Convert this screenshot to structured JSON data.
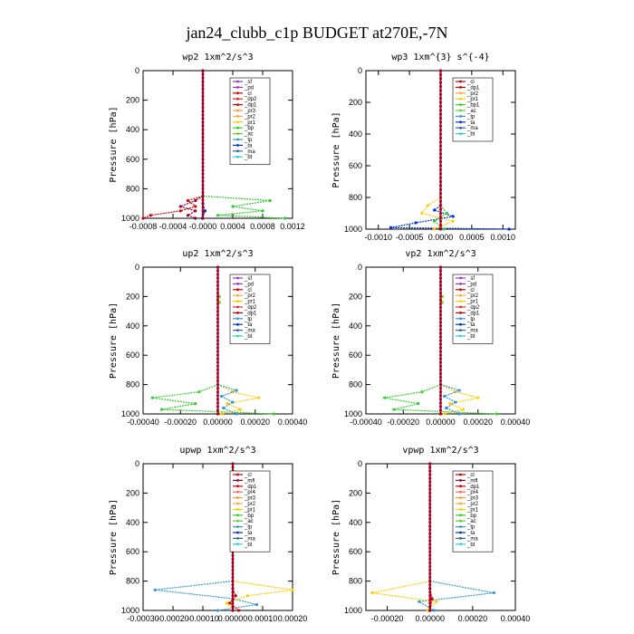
{
  "figure_title": "jan24_clubb_c1p  BUDGET at270E,-7N",
  "chart_data": [
    {
      "type": "line",
      "title": "wp2   1xm^2/s^3",
      "ylabel": "Pressure [hPa]",
      "ylim": [
        1000,
        0
      ],
      "yticks": [
        0,
        200,
        400,
        600,
        800,
        1000
      ],
      "xlim": [
        -0.0008,
        0.0012
      ],
      "xticks": [
        "-0.0008",
        "-0.0004",
        "-0.0000",
        "0.0004",
        "0.0008",
        "0.0012"
      ],
      "xtick_values": [
        -0.0008,
        -0.0004,
        0.0,
        0.0004,
        0.0008,
        0.0012
      ],
      "legend": [
        "_sf",
        "_pd",
        "_cl",
        "_dp2",
        "_dp1",
        "_pr3",
        "_pr2",
        "_pr1",
        "_bp",
        "_ac",
        "_tp",
        "_ta",
        "_ma",
        "_bt"
      ],
      "series": [
        {
          "name": "_bp",
          "color": "#33cc33",
          "y": [
            850,
            880,
            920,
            950,
            980,
            1000
          ],
          "x": [
            0.0,
            0.0009,
            0.0004,
            0.0008,
            0.0002,
            0.0011
          ]
        },
        {
          "name": "_dp1",
          "color": "#cc0000",
          "y": [
            850,
            880,
            920,
            950,
            980,
            1000
          ],
          "x": [
            0.0,
            -0.0002,
            -0.0001,
            -0.0003,
            -0.0007,
            -0.0008
          ]
        },
        {
          "name": "_dp2",
          "color": "#990033",
          "y": [
            850,
            880,
            920,
            950,
            980,
            1000
          ],
          "x": [
            0.0,
            -0.0001,
            -0.0003,
            -0.0001,
            -0.0002,
            -0.0001
          ]
        },
        {
          "name": "_ta",
          "color": "#0033cc",
          "y": [
            850,
            900,
            950,
            1000
          ],
          "x": [
            0.0,
            0.0,
            3e-05,
            -1e-05
          ]
        },
        {
          "name": "_pd",
          "color": "#9933cc",
          "y": [
            0,
            1000
          ],
          "x": [
            0.0,
            0.0
          ]
        }
      ]
    },
    {
      "type": "line",
      "title": "wp3   1xm^{3} s^{-4}",
      "ylabel": "Pressure [hPa]",
      "ylim": [
        1000,
        0
      ],
      "yticks": [
        0,
        200,
        400,
        600,
        800,
        1000
      ],
      "xlim": [
        -0.0012,
        0.0012
      ],
      "xticks": [
        "-0.0010",
        "-0.0005",
        "0.0000",
        "0.0005",
        "0.0010"
      ],
      "xtick_values": [
        -0.001,
        -0.0005,
        0.0,
        0.0005,
        0.001
      ],
      "legend": [
        "_cl",
        "_dp1",
        "_pr2",
        "_pr1",
        "_bp1",
        "_ac",
        "_tp",
        "_ta",
        "_ma",
        "_bt"
      ],
      "series": [
        {
          "name": "_ta",
          "color": "#0033cc",
          "y": [
            850,
            880,
            920,
            960,
            990,
            1000
          ],
          "x": [
            0.0,
            -0.0001,
            0.0002,
            -0.0004,
            -0.0008,
            0.0011
          ]
        },
        {
          "name": "_pr1",
          "color": "#ffcc00",
          "y": [
            800,
            850,
            900,
            950,
            1000
          ],
          "x": [
            0.0,
            -0.0002,
            -0.0003,
            0.0002,
            -0.0001
          ]
        },
        {
          "name": "_ac",
          "color": "#33cc33",
          "y": [
            850,
            900,
            950,
            1000
          ],
          "x": [
            0.0,
            0.0001,
            -0.0001,
            5e-05
          ]
        },
        {
          "name": "_dp1",
          "color": "#cc0000",
          "y": [
            0,
            1000
          ],
          "x": [
            0.0,
            0.0
          ]
        }
      ]
    },
    {
      "type": "line",
      "title": "up2   1xm^2/s^3",
      "ylabel": "Pressure [hPa]",
      "ylim": [
        1000,
        0
      ],
      "yticks": [
        0,
        200,
        400,
        600,
        800,
        1000
      ],
      "xlim": [
        -0.0004,
        0.0004
      ],
      "xticks": [
        "-0.00040",
        "-0.00020",
        "0.00000",
        "0.00020",
        "0.00040"
      ],
      "xtick_values": [
        -0.0004,
        -0.0002,
        0.0,
        0.0002,
        0.0004
      ],
      "legend": [
        "_sf",
        "_pd",
        "_cl",
        "_pr2",
        "_pr1",
        "_dp2",
        "_dp1",
        "_tp",
        "_ta",
        "_ma",
        "_bt"
      ],
      "series": [
        {
          "name": "_dp1",
          "color": "#33cc33",
          "y": [
            800,
            850,
            890,
            930,
            970,
            1000
          ],
          "x": [
            0.0,
            -0.0001,
            -0.00035,
            -0.00012,
            -0.0003,
            0.0003
          ]
        },
        {
          "name": "_pr1",
          "color": "#ffcc00",
          "y": [
            800,
            850,
            890,
            930,
            970,
            1000
          ],
          "x": [
            0.0,
            8e-05,
            0.00022,
            5e-05,
            0.00012,
            2e-05
          ]
        },
        {
          "name": "_tp",
          "color": "#3399cc",
          "y": [
            800,
            840,
            880,
            920,
            960,
            1000
          ],
          "x": [
            0.0,
            0.0001,
            2e-05,
            8e-05,
            3e-05,
            0.0001
          ]
        },
        {
          "name": "_dp2",
          "color": "#99cc33",
          "y": [
            180,
            200,
            220,
            240
          ],
          "x": [
            0.0,
            1e-05,
            0.0,
            1e-05
          ]
        },
        {
          "name": "_cl",
          "color": "#cc0000",
          "y": [
            0,
            1000
          ],
          "x": [
            0.0,
            0.0
          ]
        }
      ]
    },
    {
      "type": "line",
      "title": "vp2   1xm^2/s^3",
      "ylabel": "Pressure [hPa]",
      "ylim": [
        1000,
        0
      ],
      "yticks": [
        0,
        200,
        400,
        600,
        800,
        1000
      ],
      "xlim": [
        -0.0004,
        0.0004
      ],
      "xticks": [
        "-0.00040",
        "-0.00020",
        "0.00000",
        "0.00020",
        "0.00040"
      ],
      "xtick_values": [
        -0.0004,
        -0.0002,
        0.0,
        0.0002,
        0.0004
      ],
      "legend": [
        "_sf",
        "_pd",
        "_cl",
        "_pr2",
        "_pr1",
        "_dp2",
        "_dp1",
        "_tp",
        "_ta",
        "_ma",
        "_bt"
      ],
      "series": [
        {
          "name": "_dp1",
          "color": "#33cc33",
          "y": [
            800,
            850,
            890,
            930,
            970,
            1000
          ],
          "x": [
            0.0,
            -0.0001,
            -0.0003,
            -0.00012,
            -0.00025,
            0.0003
          ]
        },
        {
          "name": "_pr1",
          "color": "#ffcc00",
          "y": [
            800,
            850,
            890,
            930,
            970,
            1000
          ],
          "x": [
            0.0,
            8e-05,
            0.0002,
            5e-05,
            0.00012,
            2e-05
          ]
        },
        {
          "name": "_tp",
          "color": "#3399cc",
          "y": [
            800,
            840,
            880,
            920,
            960,
            1000
          ],
          "x": [
            0.0,
            0.0001,
            2e-05,
            8e-05,
            3e-05,
            0.0001
          ]
        },
        {
          "name": "_dp2",
          "color": "#99cc33",
          "y": [
            180,
            200,
            220,
            240
          ],
          "x": [
            0.0,
            1e-05,
            0.0,
            1e-05
          ]
        },
        {
          "name": "_cl",
          "color": "#cc0000",
          "y": [
            0,
            1000
          ],
          "x": [
            0.0,
            0.0
          ]
        }
      ]
    },
    {
      "type": "line",
      "title": "upwp   1xm^2/s^3",
      "ylabel": "Pressure [hPa]",
      "ylim": [
        1000,
        0
      ],
      "yticks": [
        0,
        200,
        400,
        600,
        800,
        1000
      ],
      "xlim": [
        -0.0003,
        0.0002
      ],
      "xticks": [
        "-0.00030",
        "-0.00020",
        "-0.00010",
        "0.00000",
        "0.00010",
        "0.00020"
      ],
      "xtick_values": [
        -0.0003,
        -0.0002,
        -0.0001,
        0.0,
        0.0001,
        0.0002
      ],
      "legend": [
        "_cl",
        "_mfl",
        "_dp1",
        "_pr4",
        "_pr3",
        "_pr2",
        "_pr1",
        "_bp",
        "_ac",
        "_tp",
        "_ta",
        "_ma",
        "_bt"
      ],
      "series": [
        {
          "name": "_tp",
          "color": "#3399cc",
          "y": [
            800,
            860,
            920,
            960,
            1000
          ],
          "x": [
            0.0,
            -0.00026,
            0.0,
            8e-05,
            -5e-05
          ]
        },
        {
          "name": "_pr1",
          "color": "#ffcc00",
          "y": [
            800,
            860,
            900,
            950,
            1000
          ],
          "x": [
            0.0,
            0.0002,
            5e-05,
            -2e-05,
            0.0
          ]
        },
        {
          "name": "_dp1",
          "color": "#cc0000",
          "y": [
            850,
            900,
            950,
            1000
          ],
          "x": [
            0.0,
            1e-05,
            -1e-05,
            2e-05
          ]
        },
        {
          "name": "_mfl",
          "color": "#990033",
          "y": [
            0,
            1000
          ],
          "x": [
            0.0,
            0.0
          ]
        }
      ]
    },
    {
      "type": "line",
      "title": "vpwp   1xm^2/s^3",
      "ylabel": "Pressure [hPa]",
      "ylim": [
        1000,
        0
      ],
      "yticks": [
        0,
        200,
        400,
        600,
        800,
        1000
      ],
      "xlim": [
        -0.0003,
        0.0004
      ],
      "xticks": [
        "-0.00020",
        "0.00000",
        "0.00020",
        "0.00040"
      ],
      "xtick_values": [
        -0.0002,
        0.0,
        0.0002,
        0.0004
      ],
      "legend": [
        "_cl",
        "_mfl",
        "_dp1",
        "_pr4",
        "_pr3",
        "_pr2",
        "_pr1",
        "_bp",
        "_ac",
        "_tp",
        "_ta",
        "_ma",
        "_bt"
      ],
      "series": [
        {
          "name": "_tp",
          "color": "#3399cc",
          "y": [
            800,
            880,
            940,
            1000
          ],
          "x": [
            0.0,
            0.0003,
            -5e-05,
            2e-05
          ]
        },
        {
          "name": "_pr1",
          "color": "#ffcc00",
          "y": [
            800,
            880,
            940,
            1000
          ],
          "x": [
            0.0,
            -0.00027,
            3e-05,
            -1e-05
          ]
        },
        {
          "name": "_dp1",
          "color": "#cc0000",
          "y": [
            850,
            920,
            1000
          ],
          "x": [
            0.0,
            1e-05,
            0.0
          ]
        },
        {
          "name": "_mfl",
          "color": "#990033",
          "y": [
            0,
            1000
          ],
          "x": [
            0.0,
            0.0
          ]
        }
      ]
    }
  ],
  "legend_colors": {
    "_sf": "#9933cc",
    "_pd": "#9933cc",
    "_cl": "#cc0000",
    "_mfl": "#990033",
    "_dp2": "#cc3333",
    "_dp1": "#cc0000",
    "_pr4": "#ff6666",
    "_pr3": "#ff9933",
    "_pr2": "#ffaa33",
    "_pr1": "#ffcc00",
    "_bp": "#33cc33",
    "_bp1": "#33cc33",
    "_ac": "#66cc33",
    "_tp": "#3399cc",
    "_ta": "#0033cc",
    "_ma": "#336699",
    "_bt": "#33cccc"
  }
}
